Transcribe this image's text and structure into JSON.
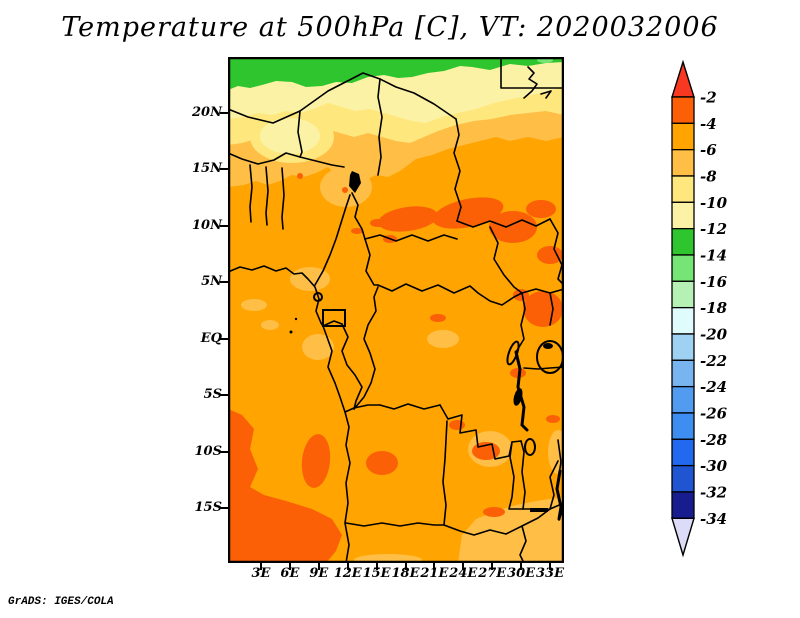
{
  "title": "Temperature at 500hPa [C], VT: 2020032006",
  "credit": "GrADS: IGES/COLA",
  "chart_data": {
    "type": "heatmap",
    "title": "Temperature at 500hPa [C], VT: 2020032006",
    "variable": "Temperature",
    "level": "500hPa",
    "units": "C",
    "valid_time": "2020032006",
    "x_tick_labels": [
      "3E",
      "6E",
      "9E",
      "12E",
      "15E",
      "18E",
      "21E",
      "24E",
      "27E",
      "30E",
      "33E"
    ],
    "y_tick_labels": [
      "20N",
      "15N",
      "10N",
      "5N",
      "EQ",
      "5S",
      "10S",
      "15S"
    ],
    "lon_range_deg_east": [
      -1,
      36
    ],
    "lat_range_deg": [
      -20,
      25
    ],
    "grid": false,
    "legend_position": "right",
    "colorbar": {
      "boundary_labels": [
        "-2",
        "-4",
        "-6",
        "-8",
        "-10",
        "-12",
        "-14",
        "-16",
        "-18",
        "-20",
        "-22",
        "-24",
        "-26",
        "-28",
        "-30",
        "-32",
        "-34"
      ],
      "cell_colors_top_to_bottom": [
        "#FB6007",
        "#FFA400",
        "#FFBE46",
        "#FEE77D",
        "#FCF2A5",
        "#2EC52E",
        "#75E675",
        "#B5F1B5",
        "#DFFBFB",
        "#9FD2F2",
        "#78B5F0",
        "#519CF0",
        "#3E8DF0",
        "#2169EE",
        "#1F55D0",
        "#171D8E"
      ],
      "above_max_arrow_color": "#F93822",
      "below_min_arrow_color": "#DCDCF8"
    },
    "latitude_bands_north_to_south": [
      {
        "lat": "near 25N (north edge)",
        "temp_c": "-12 to -14",
        "color": "green"
      },
      {
        "lat": "21N to 24N",
        "temp_c": "-10 to -12",
        "color": "cream"
      },
      {
        "lat": "18N to 21N",
        "temp_c": "-8 to -10",
        "color": "pale yellow"
      },
      {
        "lat": "15N to 18N",
        "temp_c": "-6 to -8",
        "color": "amber"
      },
      {
        "lat": "south of 15N (main body)",
        "temp_c": "-4 to -6",
        "color": "orange"
      }
    ],
    "warm_patches_minus2_to_minus4": [
      "belt near 8N-11N from about 15E to 34E (Chad / Sudan / CAR)",
      "around 31E-34E near the Equator (Uganda / Lake Victoria region)",
      "southwest corner, south of 12S and west of 12E (off Angola coast)",
      "central Angola near 15E 12S and scattered spots near 25E-27E 10S-14S"
    ],
    "cool_patches_minus6_to_minus8": [
      "Gulf of Guinea coast near 3N-6N",
      "Gabon coastal area near the Equator",
      "southeast corner from about 26E-35E south of 14S (Zambia / Malawi)"
    ]
  }
}
